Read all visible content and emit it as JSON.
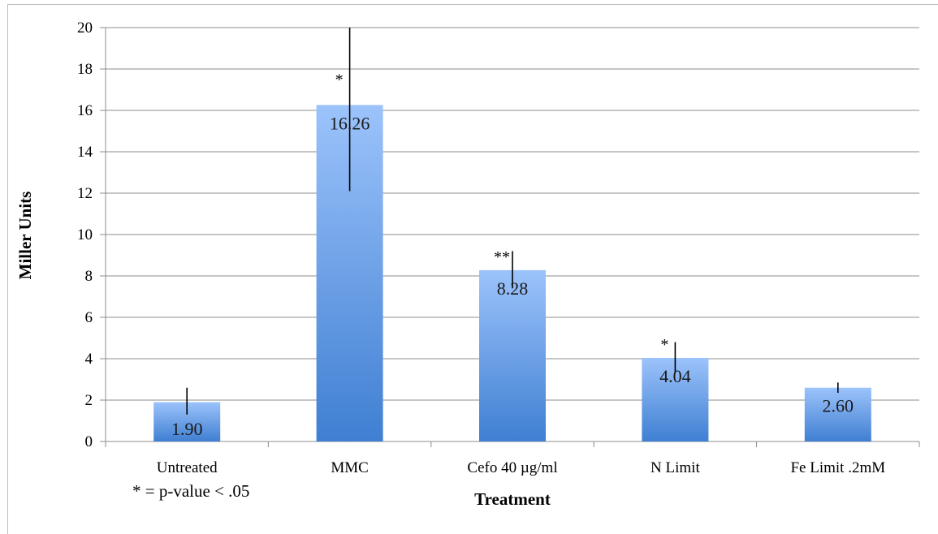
{
  "chart_data": {
    "type": "bar",
    "categories": [
      "Untreated",
      "MMC",
      "Cefo 40 µg/ml",
      "N Limit",
      "Fe Limit .2mM"
    ],
    "values": [
      1.9,
      16.26,
      8.28,
      4.04,
      2.6
    ],
    "data_labels": [
      "1.90",
      "16.26",
      "8.28",
      "4.04",
      "2.60"
    ],
    "error_high": [
      2.6,
      20.0,
      9.2,
      4.8,
      2.85
    ],
    "error_low": [
      1.3,
      12.1,
      7.4,
      3.3,
      2.35
    ],
    "significance": [
      "",
      "*",
      "**",
      "*",
      ""
    ],
    "xlabel": "Treatment",
    "ylabel": "Miller Units",
    "ylim": [
      0,
      20
    ],
    "yticks": [
      0,
      2,
      4,
      6,
      8,
      10,
      12,
      14,
      16,
      18,
      20
    ],
    "grid": true,
    "note": "* = p-value < .05",
    "colors": {
      "bar_top": "#9cc3fb",
      "bar_bottom": "#3f7fd2",
      "grid": "#8c8c8c",
      "axis": "#8c8c8c"
    }
  }
}
